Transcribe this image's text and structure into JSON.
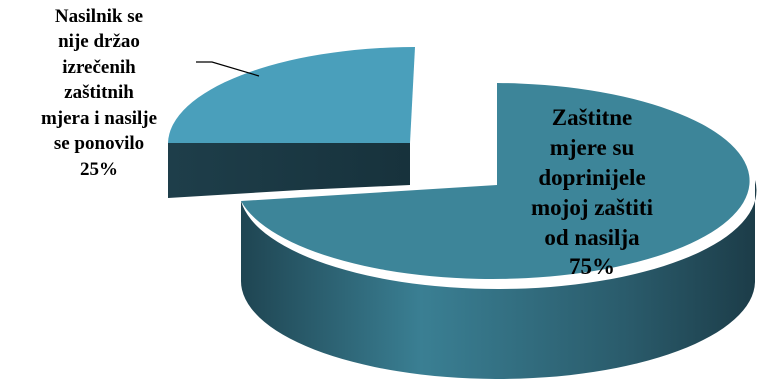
{
  "chart_data": {
    "type": "pie",
    "style": "3d-exploded",
    "slices": [
      {
        "label_lines": [
          "Nasilnik se",
          "nije držao",
          "izrečenih",
          "zaštitnih",
          "mjera i nasilje",
          "se ponovilo"
        ],
        "value_text": "25%",
        "value": 25,
        "color": "#4A9FBB"
      },
      {
        "label_lines": [
          "Zaštitne",
          "mjere su",
          "doprinijele",
          "mojoj zaštiti",
          "od nasilja"
        ],
        "value_text": "75%",
        "value": 75,
        "color": "#3D8599"
      }
    ]
  }
}
